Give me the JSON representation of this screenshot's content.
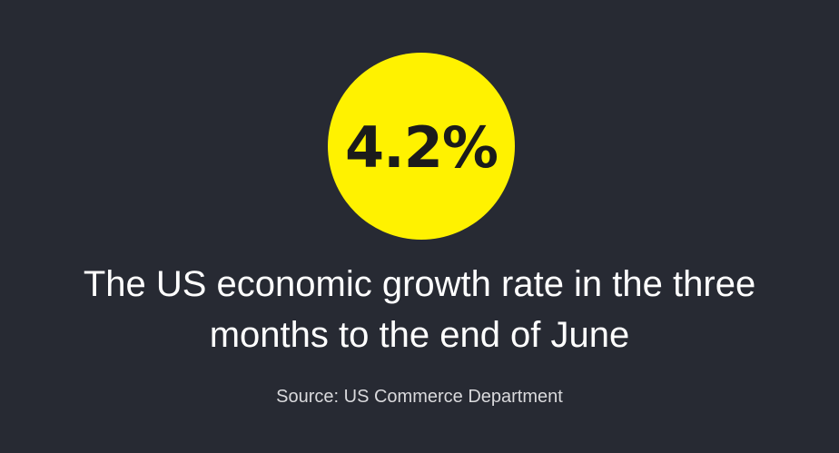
{
  "statistic": {
    "value": "4.2%",
    "circle_color": "#fff200"
  },
  "headline": {
    "line1": "The US economic growth rate in the three",
    "line2": "months to the end of June"
  },
  "source": {
    "text": "Source: US Commerce Department"
  },
  "colors": {
    "background": "#272a33",
    "text": "#ffffff"
  }
}
